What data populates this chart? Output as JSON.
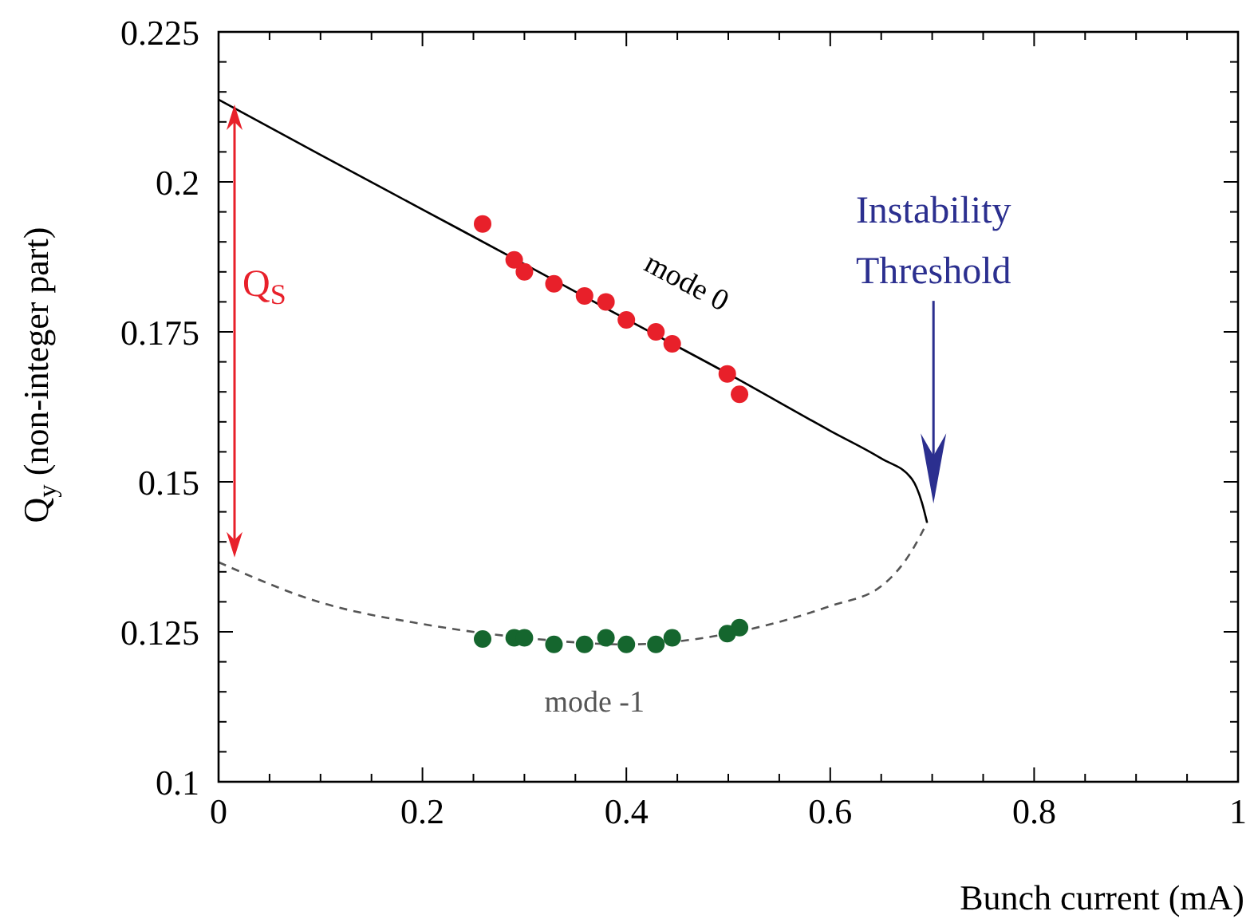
{
  "chart_data": {
    "type": "line",
    "xlabel": "Bunch current (mA)",
    "ylabel": "Q$_{y}$ (non-integer part)",
    "xlim": [
      0,
      1
    ],
    "ylim": [
      0.1,
      0.225
    ],
    "xticks": [
      0,
      {
        "value": 0.05,
        "label": null
      },
      {
        "value": 0.1,
        "label": null
      },
      {
        "value": 0.15,
        "label": null
      },
      0.2,
      {
        "value": 0.25,
        "label": null
      },
      {
        "value": 0.3,
        "label": null
      },
      {
        "value": 0.35,
        "label": null
      },
      0.4,
      {
        "value": 0.45,
        "label": null
      },
      {
        "value": 0.5,
        "label": null
      },
      {
        "value": 0.55,
        "label": null
      },
      0.6,
      {
        "value": 0.65,
        "label": null
      },
      {
        "value": 0.7,
        "label": null
      },
      {
        "value": 0.75,
        "label": null
      },
      0.8,
      {
        "value": 0.85,
        "label": null
      },
      {
        "value": 0.9,
        "label": null
      },
      {
        "value": 0.95,
        "label": null
      },
      1
    ],
    "yticks": [
      0.1,
      {
        "value": 0.105,
        "label": null
      },
      {
        "value": 0.11,
        "label": null
      },
      {
        "value": 0.115,
        "label": null
      },
      {
        "value": 0.12,
        "label": null
      },
      0.125,
      {
        "value": 0.13,
        "label": null
      },
      {
        "value": 0.135,
        "label": null
      },
      {
        "value": 0.14,
        "label": null
      },
      {
        "value": 0.145,
        "label": null
      },
      0.15,
      {
        "value": 0.155,
        "label": null
      },
      {
        "value": 0.16,
        "label": null
      },
      {
        "value": 0.165,
        "label": null
      },
      {
        "value": 0.17,
        "label": null
      },
      0.175,
      {
        "value": 0.18,
        "label": null
      },
      {
        "value": 0.185,
        "label": null
      },
      {
        "value": 0.19,
        "label": null
      },
      {
        "value": 0.195,
        "label": null
      },
      0.2,
      {
        "value": 0.205,
        "label": null
      },
      {
        "value": 0.21,
        "label": null
      },
      {
        "value": 0.215,
        "label": null
      },
      {
        "value": 0.22,
        "label": null
      },
      0.225
    ],
    "grid": false,
    "legend": false,
    "series": [
      {
        "name": "mode 0",
        "color": "#000000",
        "line_style": "solid",
        "x": [
          0,
          0.1,
          0.2,
          0.3,
          0.4,
          0.5,
          0.6,
          0.65,
          0.68,
          0.69,
          0.695
        ],
        "values": [
          0.2137,
          0.2045,
          0.1954,
          0.1863,
          0.1771,
          0.168,
          0.1585,
          0.1539,
          0.1505,
          0.1465,
          0.1432
        ]
      },
      {
        "name": "mode -1",
        "color": "#555555",
        "line_style": "dashed",
        "x": [
          0,
          0.1,
          0.2,
          0.3,
          0.4,
          0.5,
          0.6,
          0.65,
          0.68,
          0.695
        ],
        "values": [
          0.1366,
          0.1299,
          0.1263,
          0.124,
          0.1229,
          0.1247,
          0.1293,
          0.1326,
          0.1385,
          0.1432
        ]
      },
      {
        "type": "scatter",
        "color": "#e8202a",
        "marker": "circle",
        "x": [
          0.259,
          0.29,
          0.3,
          0.329,
          0.359,
          0.38,
          0.4,
          0.429,
          0.445,
          0.499,
          0.511
        ],
        "values": [
          0.193,
          0.187,
          0.185,
          0.183,
          0.181,
          0.18,
          0.177,
          0.175,
          0.173,
          0.168,
          0.1646
        ]
      },
      {
        "type": "scatter",
        "color": "#15662e",
        "marker": "circle",
        "x": [
          0.259,
          0.29,
          0.3,
          0.329,
          0.359,
          0.38,
          0.4,
          0.429,
          0.445,
          0.499,
          0.511
        ],
        "values": [
          0.1238,
          0.124,
          0.124,
          0.1229,
          0.1229,
          0.124,
          0.1229,
          0.1229,
          0.124,
          0.1247,
          0.1257
        ]
      }
    ],
    "annotations": [
      "Q$_{S}$",
      "Instability\nThreshold"
    ]
  }
}
